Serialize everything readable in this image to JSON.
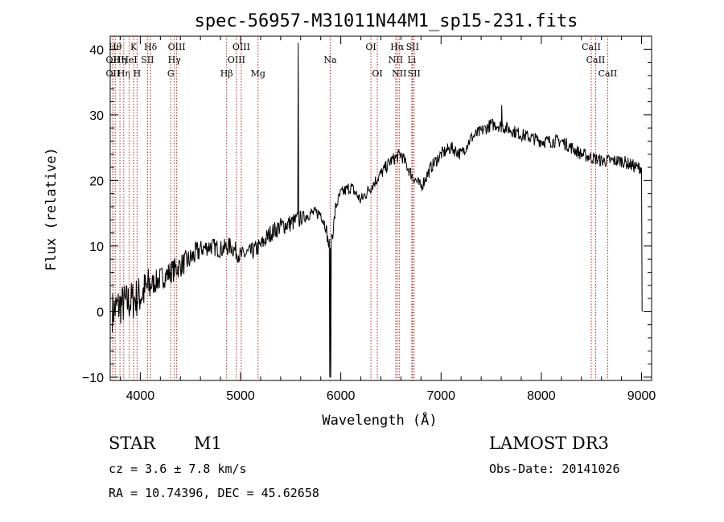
{
  "chart_data": {
    "type": "line",
    "title": "spec-56957-M31011N44M1_sp15-231.fits",
    "xlabel": "Wavelength (Å)",
    "ylabel": "Flux (relative)",
    "xlim": [
      3700,
      9100
    ],
    "ylim": [
      -10.5,
      42
    ],
    "x_ticks": [
      4000,
      5000,
      6000,
      7000,
      8000,
      9000
    ],
    "x_tick_labels": [
      "4000",
      "5000",
      "6000",
      "7000",
      "8000",
      "9000"
    ],
    "y_ticks": [
      -10,
      0,
      10,
      20,
      30,
      40
    ],
    "y_tick_labels": [
      "−10",
      "0",
      "10",
      "20",
      "30",
      "40"
    ],
    "line_color": "#000000",
    "marker_color": "#b22222",
    "spectrum_anchors": [
      [
        3720,
        0
      ],
      [
        3800,
        1
      ],
      [
        3900,
        1.5
      ],
      [
        4000,
        2.5
      ],
      [
        4100,
        4
      ],
      [
        4200,
        5
      ],
      [
        4300,
        6
      ],
      [
        4400,
        7
      ],
      [
        4500,
        8
      ],
      [
        4600,
        9.5
      ],
      [
        4700,
        10
      ],
      [
        4800,
        9.5
      ],
      [
        4900,
        10
      ],
      [
        5000,
        8.5
      ],
      [
        5100,
        9
      ],
      [
        5200,
        10
      ],
      [
        5300,
        12
      ],
      [
        5400,
        13
      ],
      [
        5500,
        13.5
      ],
      [
        5580,
        14
      ],
      [
        5700,
        15
      ],
      [
        5800,
        15
      ],
      [
        5850,
        13
      ],
      [
        5880,
        10
      ],
      [
        5920,
        12
      ],
      [
        5950,
        16
      ],
      [
        6000,
        18
      ],
      [
        6100,
        19
      ],
      [
        6200,
        17
      ],
      [
        6300,
        19
      ],
      [
        6400,
        21
      ],
      [
        6500,
        23
      ],
      [
        6600,
        24
      ],
      [
        6700,
        21
      ],
      [
        6800,
        19
      ],
      [
        6900,
        22
      ],
      [
        7000,
        24
      ],
      [
        7100,
        25
      ],
      [
        7200,
        24
      ],
      [
        7300,
        26.5
      ],
      [
        7400,
        27.5
      ],
      [
        7500,
        28.5
      ],
      [
        7550,
        28.5
      ],
      [
        7650,
        28
      ],
      [
        7800,
        27
      ],
      [
        8000,
        26
      ],
      [
        8200,
        26
      ],
      [
        8400,
        24
      ],
      [
        8600,
        23
      ],
      [
        8800,
        23
      ],
      [
        8950,
        22
      ],
      [
        9000,
        22
      ]
    ],
    "spectrum_spikes": [
      [
        5577,
        41
      ],
      [
        7605,
        31.5
      ],
      [
        5890,
        -10
      ],
      [
        5900,
        -10
      ],
      [
        9005,
        0
      ]
    ],
    "line_markers": [
      {
        "wavelength": 3727,
        "row": 2,
        "label": "OII"
      },
      {
        "wavelength": 3727,
        "row": 3,
        "label": "OII"
      },
      {
        "wavelength": 3750,
        "row": 1,
        "label": "Hθ"
      },
      {
        "wavelength": 3797,
        "row": 2,
        "label": "Hη"
      },
      {
        "wavelength": 3835,
        "row": 3,
        "label": "Hη"
      },
      {
        "wavelength": 3889,
        "row": 2,
        "label": "HeI"
      },
      {
        "wavelength": 3934,
        "row": 1,
        "label": "K"
      },
      {
        "wavelength": 3968,
        "row": 3,
        "label": "H"
      },
      {
        "wavelength": 4072,
        "row": 2,
        "label": "SII"
      },
      {
        "wavelength": 4102,
        "row": 1,
        "label": "Hδ"
      },
      {
        "wavelength": 4304,
        "row": 3,
        "label": "G"
      },
      {
        "wavelength": 4340,
        "row": 2,
        "label": "Hγ"
      },
      {
        "wavelength": 4363,
        "row": 1,
        "label": "OIII"
      },
      {
        "wavelength": 4861,
        "row": 3,
        "label": "Hβ"
      },
      {
        "wavelength": 4959,
        "row": 2,
        "label": "OIII"
      },
      {
        "wavelength": 5007,
        "row": 1,
        "label": "OIII"
      },
      {
        "wavelength": 5175,
        "row": 3,
        "label": "Mg"
      },
      {
        "wavelength": 5894,
        "row": 2,
        "label": "Na"
      },
      {
        "wavelength": 6300,
        "row": 1,
        "label": "OI"
      },
      {
        "wavelength": 6364,
        "row": 3,
        "label": "OI"
      },
      {
        "wavelength": 6548,
        "row": 2,
        "label": "NII"
      },
      {
        "wavelength": 6563,
        "row": 1,
        "label": "Hα"
      },
      {
        "wavelength": 6583,
        "row": 3,
        "label": "NII"
      },
      {
        "wavelength": 6708,
        "row": 2,
        "label": "Li"
      },
      {
        "wavelength": 6716,
        "row": 1,
        "label": "SII"
      },
      {
        "wavelength": 6731,
        "row": 3,
        "label": "SII"
      },
      {
        "wavelength": 8498,
        "row": 1,
        "label": "CaII"
      },
      {
        "wavelength": 8542,
        "row": 2,
        "label": "CaII"
      },
      {
        "wavelength": 8662,
        "row": 3,
        "label": "CaII"
      }
    ]
  },
  "info": {
    "object_class": "STAR",
    "subclass": "M1",
    "survey": "LAMOST DR3",
    "redshift": "cz = 3.6 ± 7.8 km/s",
    "obs_date": "Obs-Date: 20141026",
    "coords": "RA =  10.74396, DEC =  45.62658"
  }
}
